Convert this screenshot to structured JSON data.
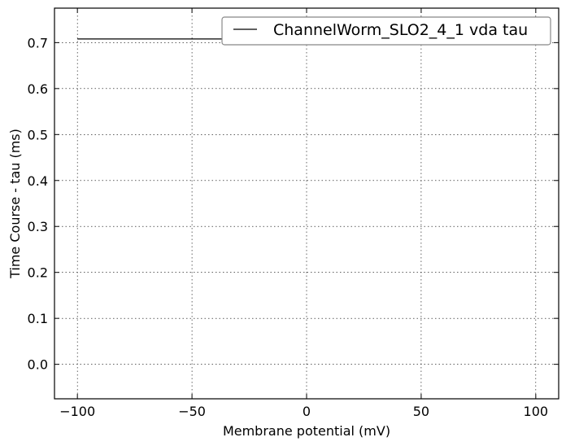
{
  "chart_data": {
    "type": "line",
    "title": "",
    "xlabel": "Membrane potential (mV)",
    "ylabel": "Time Course - tau (ms)",
    "xlim": [
      -110,
      110
    ],
    "ylim": [
      -0.075,
      0.775
    ],
    "xticks": [
      -100,
      -50,
      0,
      50,
      100
    ],
    "xtick_labels": [
      "−100",
      "−50",
      "0",
      "50",
      "100"
    ],
    "yticks": [
      0.0,
      0.1,
      0.2,
      0.3,
      0.4,
      0.5,
      0.6,
      0.7
    ],
    "ytick_labels": [
      "0.0",
      "0.1",
      "0.2",
      "0.3",
      "0.4",
      "0.5",
      "0.6",
      "0.7"
    ],
    "grid": true,
    "legend_position": "top-right",
    "series": [
      {
        "name": "ChannelWorm_SLO2_4_1 vda tau",
        "color": "#000000",
        "x": [
          -100,
          100
        ],
        "y": [
          0.708,
          0.708
        ]
      }
    ]
  }
}
